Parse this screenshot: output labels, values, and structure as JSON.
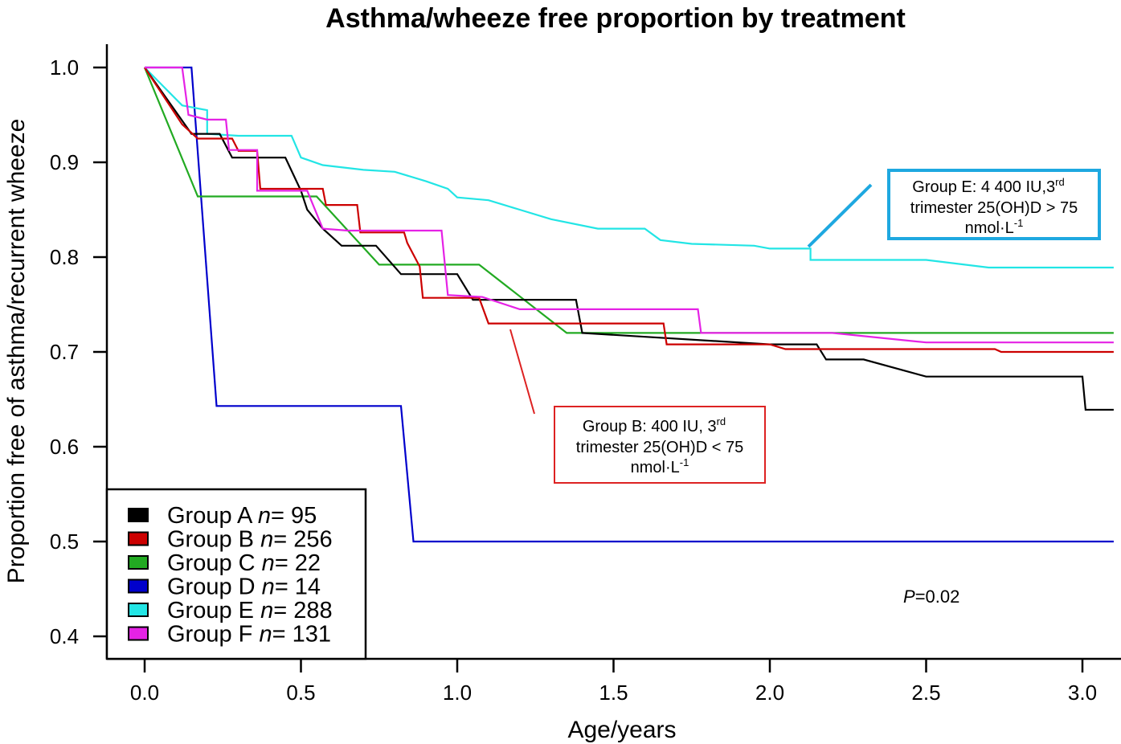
{
  "chart_data": {
    "type": "line",
    "step": true,
    "title": "Asthma/wheeze free proportion by treatment",
    "xlabel": "Age/years",
    "ylabel": "Proportion free of asthma/recurrent wheeze",
    "xlim": [
      -0.12,
      3.1
    ],
    "ylim": [
      0.37,
      1.05
    ],
    "xticks": [
      0.0,
      0.5,
      1.0,
      1.5,
      2.0,
      2.5,
      3.0
    ],
    "xtick_labels": [
      "0.0",
      "0.5",
      "1.0",
      "1.5",
      "2.0",
      "2.5",
      "3.0"
    ],
    "yticks": [
      1.0,
      0.9,
      0.8,
      0.7,
      0.6,
      0.5,
      0.4
    ],
    "ytick_labels": [
      "1.0",
      "0.9",
      "0.8",
      "0.7",
      "0.6",
      "0.5",
      "0.4"
    ],
    "series": [
      {
        "name": "Group A",
        "group_letter": "A",
        "n_label": "n",
        "n_value": "= 95",
        "color": "#000000",
        "points": [
          [
            0,
            1.0
          ],
          [
            0.15,
            0.93
          ],
          [
            0.24,
            0.93
          ],
          [
            0.28,
            0.905
          ],
          [
            0.45,
            0.905
          ],
          [
            0.5,
            0.87
          ],
          [
            0.52,
            0.85
          ],
          [
            0.57,
            0.83
          ],
          [
            0.63,
            0.812
          ],
          [
            0.74,
            0.812
          ],
          [
            0.82,
            0.782
          ],
          [
            1.0,
            0.782
          ],
          [
            1.05,
            0.755
          ],
          [
            1.38,
            0.755
          ],
          [
            1.4,
            0.72
          ],
          [
            2.0,
            0.708
          ],
          [
            2.15,
            0.708
          ],
          [
            2.18,
            0.692
          ],
          [
            2.3,
            0.692
          ],
          [
            2.5,
            0.674
          ],
          [
            2.8,
            0.674
          ],
          [
            3.0,
            0.674
          ],
          [
            3.01,
            0.639
          ],
          [
            3.1,
            0.639
          ]
        ]
      },
      {
        "name": "Group B",
        "group_letter": "B",
        "n_label": "n",
        "n_value": "= 256",
        "color": "#cc0000",
        "points": [
          [
            0,
            1.0
          ],
          [
            0.12,
            0.94
          ],
          [
            0.17,
            0.925
          ],
          [
            0.28,
            0.925
          ],
          [
            0.3,
            0.912
          ],
          [
            0.36,
            0.912
          ],
          [
            0.37,
            0.872
          ],
          [
            0.57,
            0.872
          ],
          [
            0.58,
            0.855
          ],
          [
            0.68,
            0.855
          ],
          [
            0.69,
            0.826
          ],
          [
            0.83,
            0.826
          ],
          [
            0.84,
            0.815
          ],
          [
            0.88,
            0.79
          ],
          [
            0.89,
            0.757
          ],
          [
            1.07,
            0.757
          ],
          [
            1.1,
            0.73
          ],
          [
            1.66,
            0.73
          ],
          [
            1.67,
            0.708
          ],
          [
            2.0,
            0.708
          ],
          [
            2.05,
            0.703
          ],
          [
            2.72,
            0.703
          ],
          [
            2.74,
            0.7
          ],
          [
            3.1,
            0.7
          ]
        ]
      },
      {
        "name": "Group C",
        "group_letter": "C",
        "n_label": "n",
        "n_value": "= 22",
        "color": "#22aa22",
        "points": [
          [
            0,
            1.0
          ],
          [
            0.17,
            0.864
          ],
          [
            0.55,
            0.864
          ],
          [
            0.75,
            0.792
          ],
          [
            1.07,
            0.792
          ],
          [
            1.35,
            0.72
          ],
          [
            3.1,
            0.72
          ]
        ]
      },
      {
        "name": "Group D",
        "group_letter": "D",
        "n_label": "n",
        "n_value": "= 14",
        "color": "#0000cc",
        "points": [
          [
            0,
            1.0
          ],
          [
            0.15,
            1.0
          ],
          [
            0.23,
            0.643
          ],
          [
            0.82,
            0.643
          ],
          [
            0.86,
            0.5
          ],
          [
            3.1,
            0.5
          ]
        ]
      },
      {
        "name": "Group E",
        "group_letter": "E",
        "n_label": "n",
        "n_value": "= 288",
        "color": "#22e5e5",
        "points": [
          [
            0,
            1.0
          ],
          [
            0.12,
            0.96
          ],
          [
            0.2,
            0.955
          ],
          [
            0.2,
            0.93
          ],
          [
            0.3,
            0.928
          ],
          [
            0.47,
            0.928
          ],
          [
            0.5,
            0.905
          ],
          [
            0.57,
            0.897
          ],
          [
            0.7,
            0.892
          ],
          [
            0.8,
            0.89
          ],
          [
            0.9,
            0.88
          ],
          [
            0.97,
            0.872
          ],
          [
            1.0,
            0.863
          ],
          [
            1.1,
            0.86
          ],
          [
            1.2,
            0.85
          ],
          [
            1.3,
            0.84
          ],
          [
            1.45,
            0.83
          ],
          [
            1.6,
            0.83
          ],
          [
            1.65,
            0.818
          ],
          [
            1.75,
            0.814
          ],
          [
            1.95,
            0.812
          ],
          [
            2.0,
            0.809
          ],
          [
            2.13,
            0.809
          ],
          [
            2.13,
            0.797
          ],
          [
            2.5,
            0.797
          ],
          [
            2.7,
            0.789
          ],
          [
            3.1,
            0.789
          ]
        ]
      },
      {
        "name": "Group F",
        "group_letter": "F",
        "n_label": "n",
        "n_value": "= 131",
        "color": "#e522e5",
        "points": [
          [
            0,
            1.0
          ],
          [
            0.12,
            1.0
          ],
          [
            0.14,
            0.95
          ],
          [
            0.2,
            0.945
          ],
          [
            0.26,
            0.945
          ],
          [
            0.27,
            0.913
          ],
          [
            0.36,
            0.913
          ],
          [
            0.36,
            0.87
          ],
          [
            0.52,
            0.87
          ],
          [
            0.57,
            0.83
          ],
          [
            0.65,
            0.828
          ],
          [
            0.95,
            0.828
          ],
          [
            0.97,
            0.76
          ],
          [
            1.08,
            0.758
          ],
          [
            1.2,
            0.745
          ],
          [
            1.77,
            0.745
          ],
          [
            1.78,
            0.72
          ],
          [
            2.2,
            0.72
          ],
          [
            2.5,
            0.71
          ],
          [
            3.1,
            0.71
          ]
        ]
      }
    ],
    "annotations": [
      {
        "id": "group-e",
        "lines": [
          "Group E: 4 400 IU,3",
          "trimester 25(OH)D > 75",
          "nmol·L"
        ],
        "sup1": "rd",
        "sup3": "-1",
        "color": "#1ea8e0"
      },
      {
        "id": "group-b",
        "lines": [
          "Group B: 400 IU, 3",
          "trimester 25(OH)D < 75",
          "nmol·L"
        ],
        "sup1": "rd",
        "sup3": "-1",
        "color": "#dd2222"
      }
    ],
    "p_value": {
      "label": "P",
      "value": "=0.02"
    }
  }
}
